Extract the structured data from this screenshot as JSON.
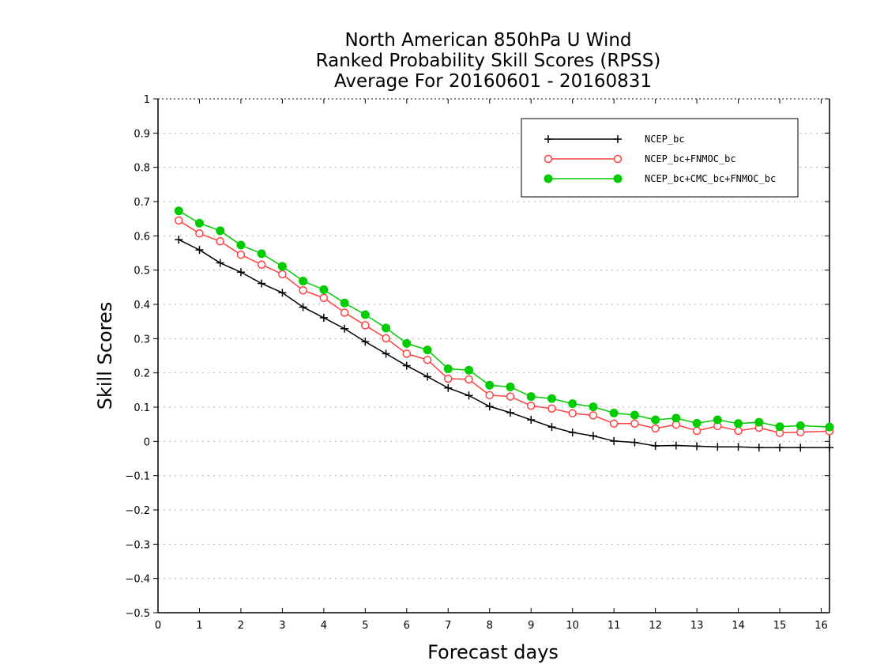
{
  "chart_data": {
    "type": "line",
    "title_lines": [
      "North American 850hPa U Wind",
      "Ranked Probability Skill Scores (RPSS)",
      "Average For 20160601 - 20160831"
    ],
    "xlabel": "Forecast days",
    "ylabel": "Skill Scores",
    "xlim": [
      0,
      16.2
    ],
    "ylim": [
      -0.5,
      1
    ],
    "x_ticks": [
      0,
      1,
      2,
      3,
      4,
      5,
      6,
      7,
      8,
      9,
      10,
      11,
      12,
      13,
      14,
      15,
      16
    ],
    "y_ticks": [
      -0.5,
      -0.4,
      -0.3,
      -0.2,
      -0.1,
      0,
      0.1,
      0.2,
      0.3,
      0.4,
      0.5,
      0.6,
      0.7,
      0.8,
      0.9,
      1
    ],
    "y_tick_labels": [
      "−0.5",
      "−0.4",
      "−0.3",
      "−0.2",
      "−0.1",
      "0",
      "0.1",
      "0.2",
      "0.3",
      "0.4",
      "0.5",
      "0.6",
      "0.7",
      "0.8",
      "0.9",
      "1"
    ],
    "grid": "dotted horizontal",
    "legend_position": "top-right",
    "x": [
      0.5,
      1,
      1.5,
      2,
      2.5,
      3,
      3.5,
      4,
      4.5,
      5,
      5.5,
      6,
      6.5,
      7,
      7.5,
      8,
      8.5,
      9,
      9.5,
      10,
      10.5,
      11,
      11.5,
      12,
      12.5,
      13,
      13.5,
      14,
      14.5,
      15,
      15.5,
      16.2
    ],
    "series": [
      {
        "name": "NCEP_bc",
        "color": "#000000",
        "marker": "plus",
        "values": [
          0.589,
          0.559,
          0.521,
          0.494,
          0.461,
          0.434,
          0.392,
          0.361,
          0.329,
          0.291,
          0.256,
          0.221,
          0.189,
          0.156,
          0.134,
          0.102,
          0.084,
          0.063,
          0.042,
          0.026,
          0.016,
          0.001,
          -0.003,
          -0.013,
          -0.012,
          -0.014,
          -0.016,
          -0.016,
          -0.018,
          -0.018,
          -0.018,
          -0.018
        ]
      },
      {
        "name": "NCEP_bc+FNMOC_bc",
        "color": "#ff4040",
        "marker": "open-circle",
        "values": [
          0.645,
          0.607,
          0.584,
          0.545,
          0.516,
          0.488,
          0.441,
          0.419,
          0.376,
          0.339,
          0.301,
          0.256,
          0.238,
          0.183,
          0.181,
          0.135,
          0.131,
          0.104,
          0.096,
          0.082,
          0.076,
          0.052,
          0.052,
          0.038,
          0.049,
          0.031,
          0.045,
          0.031,
          0.04,
          0.025,
          0.027,
          0.03
        ]
      },
      {
        "name": "NCEP_bc+CMC_bc+FNMOC_bc",
        "color": "#00cc00",
        "marker": "filled-circle",
        "values": [
          0.673,
          0.637,
          0.615,
          0.573,
          0.548,
          0.511,
          0.468,
          0.443,
          0.404,
          0.37,
          0.331,
          0.286,
          0.267,
          0.212,
          0.208,
          0.164,
          0.159,
          0.131,
          0.125,
          0.11,
          0.101,
          0.083,
          0.077,
          0.063,
          0.068,
          0.053,
          0.063,
          0.052,
          0.056,
          0.043,
          0.046,
          0.042
        ]
      }
    ]
  }
}
